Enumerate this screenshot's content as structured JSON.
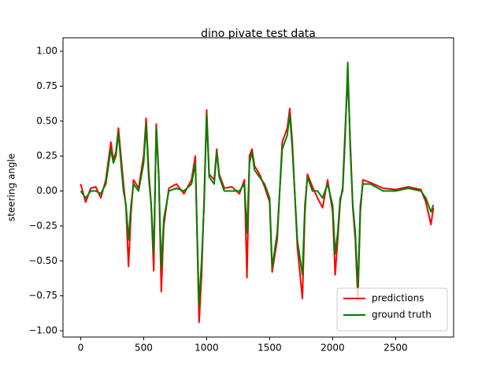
{
  "chart_data": {
    "type": "line",
    "title": "dino pivate test data",
    "y_label": "steering angle",
    "x": [
      0,
      40,
      80,
      120,
      160,
      200,
      240,
      260,
      280,
      300,
      320,
      340,
      360,
      380,
      400,
      420,
      460,
      500,
      520,
      540,
      560,
      580,
      600,
      620,
      640,
      660,
      700,
      760,
      820,
      880,
      910,
      940,
      960,
      980,
      1000,
      1020,
      1060,
      1080,
      1100,
      1140,
      1200,
      1260,
      1300,
      1320,
      1340,
      1360,
      1380,
      1420,
      1460,
      1500,
      1520,
      1560,
      1600,
      1640,
      1660,
      1680,
      1720,
      1760,
      1780,
      1800,
      1840,
      1880,
      1920,
      1960,
      2000,
      2020,
      2040,
      2060,
      2080,
      2100,
      2120,
      2140,
      2160,
      2180,
      2200,
      2220,
      2240,
      2300,
      2400,
      2500,
      2600,
      2700,
      2740,
      2780,
      2800
    ],
    "series": [
      {
        "name": "predictions",
        "color": "#ff0000",
        "values": [
          0.05,
          -0.08,
          0.02,
          0.03,
          -0.05,
          0.08,
          0.35,
          0.22,
          0.28,
          0.45,
          0.25,
          0.05,
          -0.12,
          -0.54,
          -0.15,
          0.08,
          0.02,
          0.25,
          0.52,
          0.15,
          -0.1,
          -0.57,
          0.48,
          0.12,
          -0.72,
          -0.25,
          0.02,
          0.05,
          -0.02,
          0.08,
          0.25,
          -0.94,
          -0.6,
          -0.05,
          0.58,
          0.12,
          0.08,
          0.3,
          0.12,
          0.02,
          0.03,
          -0.02,
          0.08,
          -0.62,
          0.25,
          0.3,
          0.18,
          0.12,
          0.03,
          -0.08,
          -0.58,
          -0.35,
          0.35,
          0.45,
          0.59,
          0.35,
          -0.4,
          -0.77,
          -0.15,
          0.12,
          0.03,
          -0.05,
          -0.12,
          0.08,
          -0.15,
          -0.6,
          -0.35,
          -0.08,
          0.03,
          0.45,
          0.82,
          0.35,
          -0.12,
          -0.35,
          -0.78,
          -0.15,
          0.08,
          0.06,
          0.02,
          0.01,
          0.03,
          0.01,
          -0.08,
          -0.24,
          -0.12
        ]
      },
      {
        "name": "ground truth",
        "color": "#008000",
        "values": [
          0.0,
          -0.05,
          0.0,
          0.0,
          -0.02,
          0.05,
          0.3,
          0.2,
          0.25,
          0.42,
          0.2,
          0.0,
          -0.1,
          -0.35,
          -0.1,
          0.05,
          0.0,
          0.2,
          0.48,
          0.1,
          -0.1,
          -0.45,
          0.45,
          0.1,
          -0.55,
          -0.2,
          0.0,
          0.02,
          0.0,
          0.05,
          0.2,
          -0.82,
          -0.5,
          -0.1,
          0.55,
          0.1,
          0.05,
          0.28,
          0.1,
          0.0,
          0.0,
          0.0,
          0.05,
          -0.3,
          0.2,
          0.28,
          0.15,
          0.1,
          0.05,
          -0.05,
          -0.55,
          -0.3,
          0.3,
          0.4,
          0.55,
          0.3,
          -0.35,
          -0.6,
          -0.1,
          0.1,
          0.0,
          0.0,
          -0.05,
          0.05,
          -0.1,
          -0.45,
          -0.3,
          -0.05,
          0.0,
          0.4,
          0.92,
          0.3,
          -0.1,
          -0.3,
          -0.7,
          -0.1,
          0.05,
          0.05,
          0.0,
          0.0,
          0.02,
          0.0,
          -0.05,
          -0.15,
          -0.1
        ]
      }
    ],
    "xlim": [
      -140,
      2960
    ],
    "ylim": [
      -1.045,
      1.096
    ],
    "xticks": [
      0,
      500,
      1000,
      1500,
      2000,
      2500
    ],
    "yticks": [
      {
        "value": -1,
        "label": "−1.00"
      },
      {
        "value": -0.75,
        "label": "−0.75"
      },
      {
        "value": -0.5,
        "label": "−0.50"
      },
      {
        "value": -0.25,
        "label": "−0.25"
      },
      {
        "value": 0,
        "label": "0.00"
      },
      {
        "value": 0.25,
        "label": "0.25"
      },
      {
        "value": 0.5,
        "label": "0.50"
      },
      {
        "value": 0.75,
        "label": "0.75"
      },
      {
        "value": 1,
        "label": "1.00"
      }
    ],
    "legend": "lower right"
  }
}
